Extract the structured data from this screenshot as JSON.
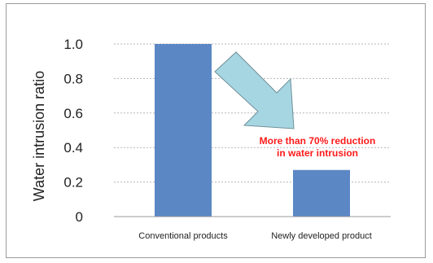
{
  "chart_data": {
    "type": "bar",
    "categories": [
      "Conventional products",
      "Newly developed product"
    ],
    "values": [
      1.0,
      0.27
    ],
    "ylabel": "Water intrusion ratio",
    "xlabel": "",
    "ylim": [
      0,
      1.0
    ],
    "yticks": [
      "0",
      "0.2",
      "0.4",
      "0.6",
      "0.8",
      "1.0"
    ],
    "grid": true,
    "bar_color": "#5b87c5",
    "arrow_color": "#a6d6e2",
    "annotation": {
      "lines": [
        "More than 70% reduction",
        "in water intrusion"
      ],
      "color": "#ff1a1a"
    }
  }
}
